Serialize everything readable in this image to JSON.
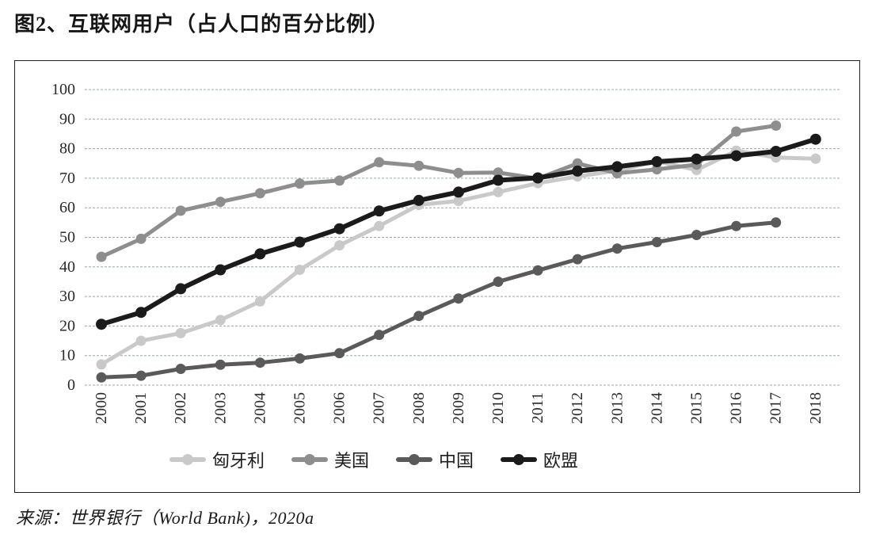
{
  "title": "图2、互联网用户（占人口的百分比例）",
  "source": "来源：世界银行（World Bank)，2020a",
  "colors": {
    "hungary": "#c9c9c9",
    "usa": "#8e8e8e",
    "china": "#5a5a5a",
    "eu": "#1b1b1b",
    "gridline": "#9aa8a8",
    "frame_border": "#1f1f1f"
  },
  "chart_data": {
    "type": "line",
    "title": "图2、互联网用户（占人口的百分比例）",
    "xlabel": "",
    "ylabel": "",
    "ylim": [
      0,
      100
    ],
    "yticks": [
      0,
      10,
      20,
      30,
      40,
      50,
      60,
      70,
      80,
      90,
      100
    ],
    "grid": true,
    "legend_position": "bottom",
    "categories": [
      "2000",
      "2001",
      "2002",
      "2003",
      "2004",
      "2005",
      "2006",
      "2007",
      "2008",
      "2009",
      "2010",
      "2011",
      "2012",
      "2013",
      "2014",
      "2015",
      "2016",
      "2017",
      "2018"
    ],
    "series": [
      {
        "key": "hungary",
        "name": "匈牙利",
        "color": "#c9c9c9",
        "values": [
          7.0,
          15.0,
          17.6,
          22.0,
          28.3,
          39.0,
          47.3,
          53.8,
          61.0,
          62.3,
          65.3,
          68.3,
          70.6,
          72.6,
          75.7,
          72.8,
          79.3,
          77.0,
          76.6
        ]
      },
      {
        "key": "usa",
        "name": "美国",
        "color": "#8e8e8e",
        "values": [
          43.4,
          49.5,
          59.0,
          62.0,
          64.9,
          68.2,
          69.2,
          75.4,
          74.2,
          71.8,
          71.9,
          69.9,
          75.0,
          71.7,
          73.0,
          74.6,
          85.8,
          87.8,
          null
        ]
      },
      {
        "key": "china",
        "name": "中国",
        "color": "#5a5a5a",
        "values": [
          2.6,
          3.2,
          5.5,
          6.9,
          7.6,
          9.0,
          10.8,
          17.0,
          23.4,
          29.3,
          35.0,
          38.8,
          42.6,
          46.2,
          48.4,
          50.8,
          53.8,
          55.0,
          null
        ]
      },
      {
        "key": "eu",
        "name": "欧盟",
        "color": "#1b1b1b",
        "values": [
          20.6,
          24.6,
          32.6,
          39.0,
          44.4,
          48.4,
          52.9,
          58.9,
          62.5,
          65.3,
          69.3,
          70.1,
          72.4,
          73.9,
          75.6,
          76.5,
          77.6,
          79.1,
          83.2
        ]
      }
    ]
  }
}
